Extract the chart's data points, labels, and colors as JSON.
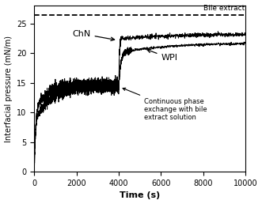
{
  "title": "",
  "xlabel": "Time (s)",
  "ylabel": "Interfacial pressure (mN/m)",
  "xlim": [
    0,
    10000
  ],
  "ylim": [
    0,
    28
  ],
  "bile_extract_level": 26.5,
  "bile_extract_label": "Bile extract",
  "phase_exchange_time": 4000,
  "line_color": "#000000",
  "dashed_color": "#000000",
  "annotation_fontsize": 6.5,
  "label_fontsize": 8,
  "tick_fontsize": 7,
  "xticks": [
    0,
    2000,
    4000,
    6000,
    8000,
    10000
  ],
  "yticks": [
    0,
    5,
    10,
    15,
    20,
    25
  ]
}
